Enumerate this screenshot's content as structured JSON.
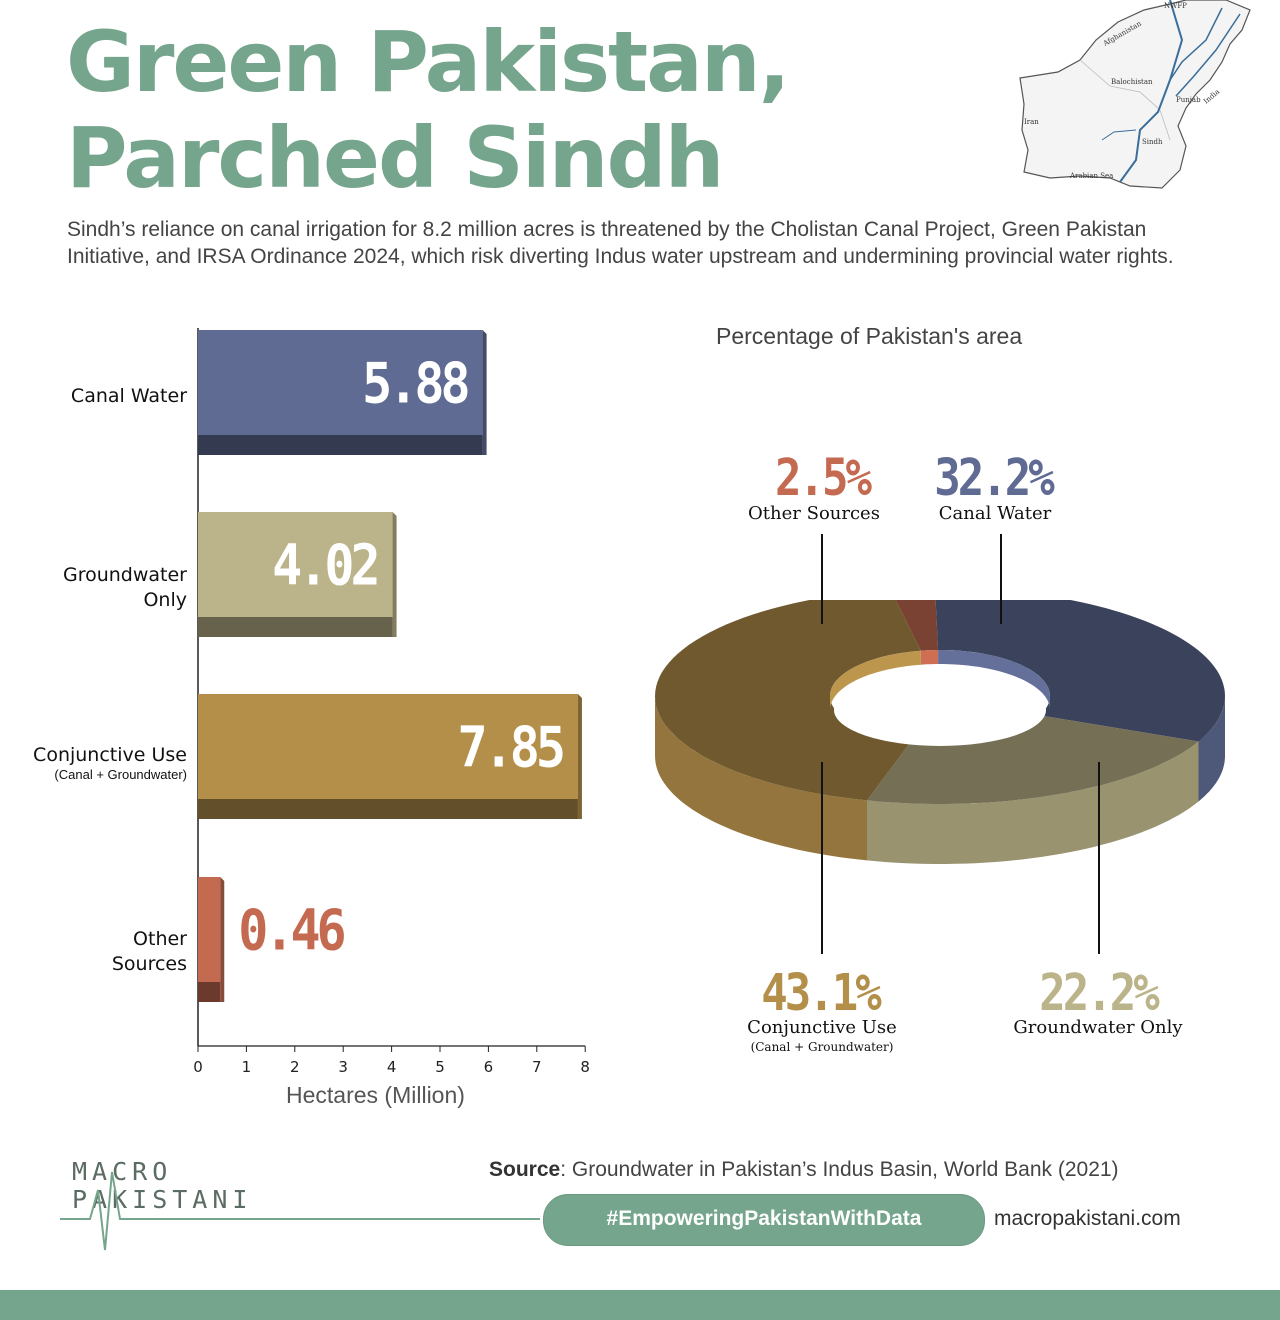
{
  "header": {
    "title_line1": "Green Pakistan,",
    "title_line2": "Parched Sindh",
    "subtitle": "Sindh’s reliance on canal irrigation for 8.2 million acres is threatened by the Cholistan Canal Project, Green Pakistan Initiative, and IRSA Ordinance 2024, which risk diverting Indus water upstream and undermining provincial water rights."
  },
  "map_labels": [
    "NWFP",
    "Afghanistan",
    "Balochistan",
    "Punjab",
    "India",
    "Iran",
    "Sindh",
    "Arabian Sea"
  ],
  "chart_data": [
    {
      "type": "bar",
      "orientation": "horizontal",
      "categories": [
        "Canal Water",
        "Groundwater Only",
        "Conjunctive Use",
        "Other Sources"
      ],
      "category_sublabels": [
        "",
        "",
        "(Canal + Groundwater)",
        ""
      ],
      "values": [
        5.88,
        4.02,
        7.85,
        0.46
      ],
      "value_labels": [
        "5.88",
        "4.02",
        "7.85",
        "0.46"
      ],
      "colors": [
        "#5f6b92",
        "#bbb389",
        "#b48f4a",
        "#c46a50"
      ],
      "xlabel": "Hectares (Million)",
      "xlim": [
        0,
        8
      ],
      "xticks": [
        "0",
        "1",
        "2",
        "3",
        "4",
        "5",
        "6",
        "7",
        "8"
      ]
    },
    {
      "type": "pie",
      "style": "3d-donut",
      "title": "Percentage of Pakistan's area",
      "slices": [
        {
          "label": "Canal Water",
          "sublabel": "",
          "value": 32.2,
          "display": "32.2%",
          "color": "#5f6b92"
        },
        {
          "label": "Groundwater Only",
          "sublabel": "",
          "value": 22.2,
          "display": "22.2%",
          "color": "#bbb389"
        },
        {
          "label": "Conjunctive Use",
          "sublabel": "(Canal + Groundwater)",
          "value": 43.1,
          "display": "43.1%",
          "color": "#b48f4a"
        },
        {
          "label": "Other Sources",
          "sublabel": "",
          "value": 2.5,
          "display": "2.5%",
          "color": "#c46a50"
        }
      ]
    }
  ],
  "footer": {
    "brand_line1": "MACRO",
    "brand_line2": "PAKISTANI",
    "source_bold": "Source",
    "source_text": ": Groundwater in Pakistan’s Indus Basin, World Bank (2021)",
    "hashtag": "#EmpoweringPakistanWithData",
    "website": "macropakistani.com"
  }
}
